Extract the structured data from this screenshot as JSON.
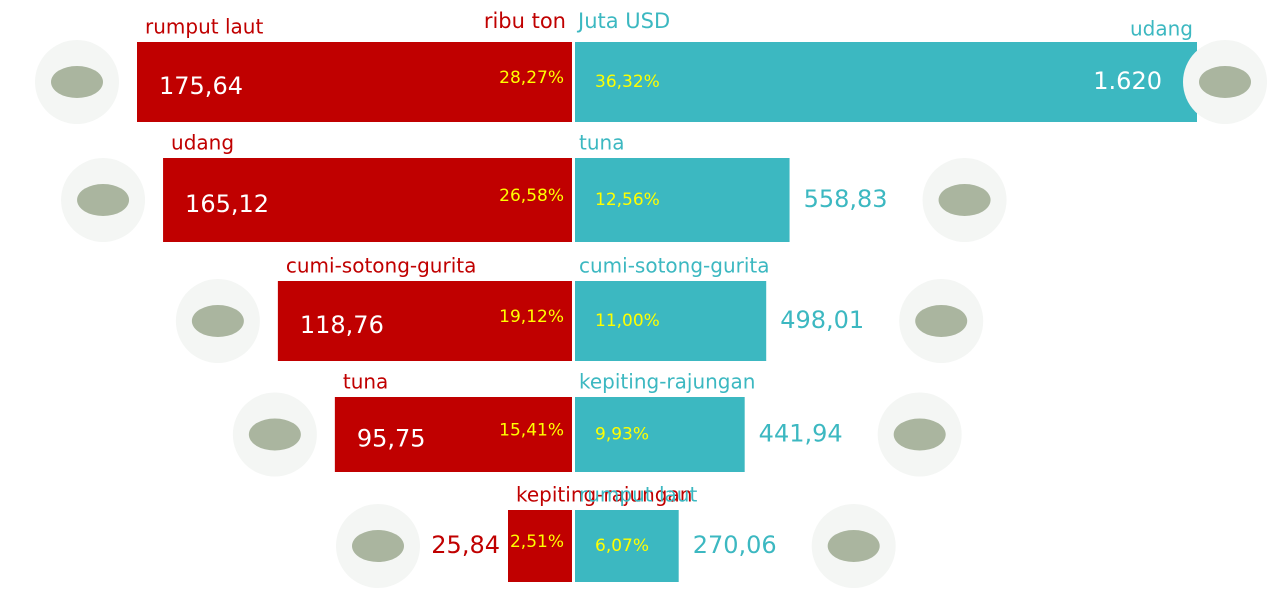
{
  "chart_data": {
    "type": "butterfly",
    "left": {
      "unit_label": "ribu ton",
      "color": "#c00000",
      "categories": [
        "rumput laut",
        "udang",
        "cumi-sotong-gurita",
        "tuna",
        "kepiting-rajungan"
      ],
      "values": [
        175.64,
        165.12,
        118.76,
        95.75,
        25.84
      ],
      "value_labels": [
        "175,64",
        "165,12",
        "118,76",
        "95,75",
        "25,84"
      ],
      "shares": [
        28.27,
        26.58,
        19.12,
        15.41,
        2.51
      ],
      "share_labels": [
        "28,27%",
        "26,58%",
        "19,12%",
        "15,41%",
        "2,51%"
      ]
    },
    "right": {
      "unit_label": "Juta USD",
      "color": "#3cb8c1",
      "categories": [
        "udang",
        "tuna",
        "cumi-sotong-gurita",
        "kepiting-rajungan",
        "rumput laut"
      ],
      "values": [
        1620,
        558.83,
        498.01,
        441.94,
        270.06
      ],
      "value_labels": [
        "1.620",
        "558,83",
        "498,01",
        "441,94",
        "270,06"
      ],
      "shares": [
        36.32,
        12.56,
        11.0,
        9.93,
        6.07
      ],
      "share_labels": [
        "36,32%",
        "12,56%",
        "11,00%",
        "9,93%",
        "6,07%"
      ]
    }
  }
}
